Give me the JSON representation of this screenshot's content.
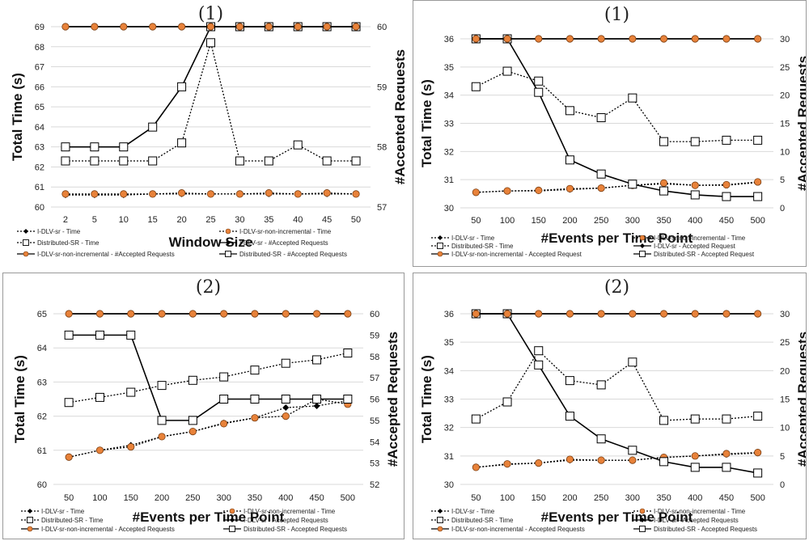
{
  "chart_data": [
    {
      "type": "line",
      "title": "(1)",
      "xlabel": "Window Size",
      "ylabel": "Total Time (s)",
      "y2label": "#Accepted Requests",
      "categories": [
        "2",
        "5",
        "10",
        "15",
        "20",
        "25",
        "30",
        "35",
        "40",
        "45",
        "50"
      ],
      "ylim": [
        60,
        69
      ],
      "yticks": [
        "60",
        "61",
        "62",
        "63",
        "64",
        "65",
        "66",
        "67",
        "68",
        "69"
      ],
      "y2lim": [
        57,
        60
      ],
      "y2ticks": [
        "57",
        "58",
        "59",
        "60"
      ],
      "series": [
        {
          "name": "I-DLV-sr - Time",
          "axis": "left",
          "marker": "diamond",
          "line": "dotted",
          "color": "#000000",
          "values": [
            60.6,
            60.6,
            60.6,
            60.65,
            60.65,
            60.65,
            60.65,
            60.65,
            60.65,
            60.65,
            60.65
          ]
        },
        {
          "name": "I-DLV-sr-non-incremental - Time",
          "axis": "left",
          "marker": "circle",
          "line": "dotted",
          "color": "#E8823A",
          "values": [
            60.65,
            60.65,
            60.65,
            60.65,
            60.7,
            60.65,
            60.65,
            60.7,
            60.65,
            60.7,
            60.65
          ]
        },
        {
          "name": "Distributed-SR - Time",
          "axis": "left",
          "marker": "square",
          "line": "dotted",
          "color": "#000000",
          "values": [
            62.3,
            62.3,
            62.3,
            62.3,
            63.2,
            68.2,
            62.3,
            62.3,
            63.1,
            62.3,
            62.3
          ]
        },
        {
          "name": "I-DLV-sr - #Accepted Requests",
          "axis": "right",
          "marker": "diamond",
          "line": "solid",
          "color": "#000000",
          "values": [
            60,
            60,
            60,
            60,
            60,
            60,
            60,
            60,
            60,
            60,
            60
          ]
        },
        {
          "name": "I-DLV-sr-non-incremental - #Accepted Requests",
          "axis": "right",
          "marker": "circle",
          "line": "solid",
          "color": "#E8823A",
          "values": [
            60,
            60,
            60,
            60,
            60,
            60,
            60,
            60,
            60,
            60,
            60
          ]
        },
        {
          "name": "Distributed-SR - #Accepted Requests",
          "axis": "right",
          "marker": "square",
          "line": "solid",
          "color": "#000000",
          "values": [
            58,
            58,
            58,
            58.33,
            59,
            60,
            60,
            60,
            60,
            60,
            60
          ]
        }
      ],
      "legend_rows": [
        [
          "I-DLV-sr - Time",
          "I-DLV-sr-non-incremental - Time"
        ],
        [
          "Distributed-SR - Time",
          "I-DLV-sr - #Accepted Requests"
        ],
        [
          "I-DLV-sr-non-incremental - #Accepted Requests",
          "Distributed-SR - #Accepted Requests"
        ]
      ]
    },
    {
      "type": "line",
      "title": "(1)",
      "xlabel": "#Events per Time Point",
      "ylabel": "Total Time (s)",
      "y2label": "#Accepted Requests",
      "categories": [
        "50",
        "100",
        "150",
        "200",
        "250",
        "300",
        "350",
        "400",
        "450",
        "500"
      ],
      "ylim": [
        30,
        36
      ],
      "yticks": [
        "30",
        "31",
        "32",
        "33",
        "34",
        "35",
        "36"
      ],
      "y2lim": [
        0,
        30
      ],
      "y2ticks": [
        "0",
        "5",
        "10",
        "15",
        "20",
        "25",
        "30"
      ],
      "series": [
        {
          "name": "I-DLV-sr - Time",
          "axis": "left",
          "marker": "diamond",
          "line": "dotted",
          "color": "#000000",
          "values": [
            30.55,
            30.6,
            30.6,
            30.65,
            30.7,
            30.8,
            30.85,
            30.8,
            30.8,
            30.9
          ]
        },
        {
          "name": "I-DLV-sr-non-incremental - Time",
          "axis": "left",
          "marker": "circle",
          "line": "dotted",
          "color": "#E8823A",
          "values": [
            30.55,
            30.6,
            30.62,
            30.68,
            30.7,
            30.8,
            30.88,
            30.8,
            30.82,
            30.92
          ]
        },
        {
          "name": "Distributed-SR - Time",
          "axis": "left",
          "marker": "square",
          "line": "dotted",
          "color": "#000000",
          "values": [
            34.3,
            34.85,
            34.5,
            33.45,
            33.2,
            33.9,
            32.35,
            32.35,
            32.4,
            32.4
          ]
        },
        {
          "name": "I-DLV-sr - Accepted Request",
          "axis": "right",
          "marker": "diamond",
          "line": "solid",
          "color": "#000000",
          "values": [
            30,
            30,
            30,
            30,
            30,
            30,
            30,
            30,
            30,
            30
          ]
        },
        {
          "name": "I-DLV-sr-non-incremental - Accepted Request",
          "axis": "right",
          "marker": "circle",
          "line": "solid",
          "color": "#E8823A",
          "values": [
            30,
            30,
            30,
            30,
            30,
            30,
            30,
            30,
            30,
            30
          ]
        },
        {
          "name": "Distributed-SR - Accepted Request",
          "axis": "right",
          "marker": "square",
          "line": "solid",
          "color": "#000000",
          "values": [
            30,
            30,
            20.5,
            8.5,
            6,
            4.2,
            3,
            2.3,
            2,
            2
          ]
        }
      ],
      "legend_rows": [
        [
          "I-DLV-sr - Time",
          "I-DLV-sr-non-incremental - Time"
        ],
        [
          "Distributed-SR - Time",
          "I-DLV-sr - Accepted Request"
        ],
        [
          "I-DLV-sr-non-incremental - Accepted Request",
          "Distributed-SR - Accepted Request"
        ]
      ]
    },
    {
      "type": "line",
      "title": "(2)",
      "xlabel": "#Events per Time Point",
      "ylabel": "Total Time (s)",
      "y2label": "#Accepted Requests",
      "categories": [
        "50",
        "100",
        "150",
        "200",
        "250",
        "300",
        "350",
        "400",
        "450",
        "500"
      ],
      "ylim": [
        60,
        65
      ],
      "yticks": [
        "60",
        "61",
        "62",
        "63",
        "64",
        "65"
      ],
      "y2lim": [
        52,
        60
      ],
      "y2ticks": [
        "52",
        "53",
        "54",
        "55",
        "56",
        "57",
        "58",
        "59",
        "60"
      ],
      "series": [
        {
          "name": "I-DLV-sr - Time",
          "axis": "left",
          "marker": "diamond",
          "line": "dotted",
          "color": "#000000",
          "values": [
            60.8,
            61.0,
            61.15,
            61.4,
            61.55,
            61.8,
            61.95,
            62.25,
            62.3,
            62.45
          ]
        },
        {
          "name": "I-DLV-sr-non-incremental - Time",
          "axis": "left",
          "marker": "circle",
          "line": "dotted",
          "color": "#E8823A",
          "values": [
            60.8,
            61.0,
            61.1,
            61.4,
            61.55,
            61.78,
            61.95,
            62.0,
            62.5,
            62.35
          ]
        },
        {
          "name": "Distributed-SR - Time",
          "axis": "left",
          "marker": "square",
          "line": "dotted",
          "color": "#000000",
          "values": [
            62.4,
            62.55,
            62.7,
            62.9,
            63.05,
            63.15,
            63.35,
            63.55,
            63.65,
            63.85
          ]
        },
        {
          "name": "I-DLV-sr - Accepted Requests",
          "axis": "right",
          "marker": "diamond",
          "line": "solid",
          "color": "#000000",
          "values": [
            60,
            60,
            60,
            60,
            60,
            60,
            60,
            60,
            60,
            60
          ]
        },
        {
          "name": "I-DLV-sr-non-incremental - Accepted Requests",
          "axis": "right",
          "marker": "circle",
          "line": "solid",
          "color": "#E8823A",
          "values": [
            60,
            60,
            60,
            60,
            60,
            60,
            60,
            60,
            60,
            60
          ]
        },
        {
          "name": "Distributed-SR - Accepted Requests",
          "axis": "right",
          "marker": "square",
          "line": "solid",
          "color": "#000000",
          "values": [
            59,
            59,
            59,
            55,
            55,
            56,
            56,
            56,
            56,
            56
          ]
        }
      ],
      "legend_rows": [
        [
          "I-DLV-sr - Time",
          "I-DLV-sr-non-incremental - Time"
        ],
        [
          "Distributed-SR - Time",
          "I-DLV-sr - Accepted Requests"
        ],
        [
          "I-DLV-sr-non-incremental - Accepted Requests",
          "Distributed-SR - Accepted Requests"
        ]
      ]
    },
    {
      "type": "line",
      "title": "(2)",
      "xlabel": "#Events per Time Point",
      "ylabel": "Total Time (s)",
      "y2label": "#Accepted Requests",
      "categories": [
        "50",
        "100",
        "150",
        "200",
        "250",
        "300",
        "350",
        "400",
        "450",
        "500"
      ],
      "ylim": [
        30,
        36
      ],
      "yticks": [
        "30",
        "31",
        "32",
        "33",
        "34",
        "35",
        "36"
      ],
      "y2lim": [
        0,
        30
      ],
      "y2ticks": [
        "0",
        "5",
        "10",
        "15",
        "20",
        "25",
        "30"
      ],
      "series": [
        {
          "name": "I-DLV-sr - Time",
          "axis": "left",
          "marker": "diamond",
          "line": "dotted",
          "color": "#000000",
          "values": [
            30.6,
            30.7,
            30.75,
            30.85,
            30.85,
            30.85,
            30.95,
            31.0,
            31.05,
            31.1
          ]
        },
        {
          "name": "I-DLV-sr-non-incremental - Time",
          "axis": "left",
          "marker": "circle",
          "line": "dotted",
          "color": "#E8823A",
          "values": [
            30.6,
            30.72,
            30.75,
            30.88,
            30.85,
            30.85,
            30.95,
            31.0,
            31.08,
            31.12
          ]
        },
        {
          "name": "Distributed-SR - Time",
          "axis": "left",
          "marker": "square",
          "line": "dotted",
          "color": "#000000",
          "values": [
            32.3,
            32.9,
            34.7,
            33.65,
            33.5,
            34.3,
            32.25,
            32.3,
            32.3,
            32.4
          ]
        },
        {
          "name": "I-DLV-sr - Accepted Requests",
          "axis": "right",
          "marker": "diamond",
          "line": "solid",
          "color": "#000000",
          "values": [
            30,
            30,
            30,
            30,
            30,
            30,
            30,
            30,
            30,
            30
          ]
        },
        {
          "name": "I-DLV-sr-non-incremental - Accepted Requests",
          "axis": "right",
          "marker": "circle",
          "line": "solid",
          "color": "#E8823A",
          "values": [
            30,
            30,
            30,
            30,
            30,
            30,
            30,
            30,
            30,
            30
          ]
        },
        {
          "name": "Distributed-SR - Accepted Requests",
          "axis": "right",
          "marker": "square",
          "line": "solid",
          "color": "#000000",
          "values": [
            30,
            30,
            21,
            12,
            8,
            6,
            4,
            3,
            3,
            2
          ]
        }
      ],
      "legend_rows": [
        [
          "I-DLV-sr - Time",
          "I-DLV-sr-non-incremental - Time"
        ],
        [
          "Distributed-SR - Time",
          "I-DLV-sr - Accepted Requests"
        ],
        [
          "I-DLV-sr-non-incremental - Accepted Requests",
          "Distributed-SR - Accepted Requests"
        ]
      ]
    }
  ],
  "colors": {
    "orange": "#E8823A",
    "black": "#000000",
    "grid": "#d9d9d9"
  }
}
